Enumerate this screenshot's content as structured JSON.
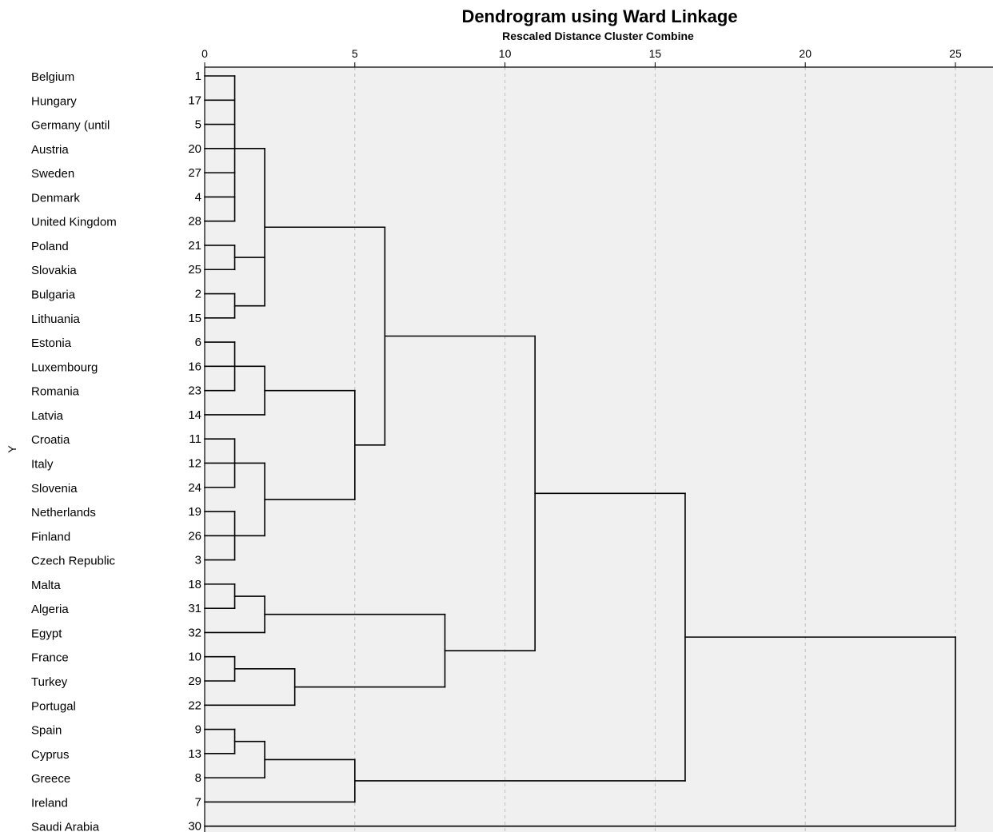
{
  "chart_data": {
    "type": "dendrogram",
    "title": "Dendrogram using Ward Linkage",
    "subtitle": "Rescaled Distance Cluster Combine",
    "ylabel": "Y",
    "x_ticks": [
      0,
      5,
      10,
      15,
      20,
      25
    ],
    "xlim": [
      0,
      25
    ],
    "grid": true,
    "colors": {
      "plot_bg": "#f0f0f0",
      "line": "#000000",
      "grid": "#bdbdbd"
    },
    "leaves": [
      {
        "name": "Belgium",
        "id": "1"
      },
      {
        "name": "Hungary",
        "id": "17"
      },
      {
        "name": "Germany (until",
        "id": "5"
      },
      {
        "name": "Austria",
        "id": "20"
      },
      {
        "name": "Sweden",
        "id": "27"
      },
      {
        "name": "Denmark",
        "id": "4"
      },
      {
        "name": "United Kingdom",
        "id": "28"
      },
      {
        "name": "Poland",
        "id": "21"
      },
      {
        "name": "Slovakia",
        "id": "25"
      },
      {
        "name": "Bulgaria",
        "id": "2"
      },
      {
        "name": "Lithuania",
        "id": "15"
      },
      {
        "name": "Estonia",
        "id": "6"
      },
      {
        "name": "Luxembourg",
        "id": "16"
      },
      {
        "name": "Romania",
        "id": "23"
      },
      {
        "name": "Latvia",
        "id": "14"
      },
      {
        "name": "Croatia",
        "id": "11"
      },
      {
        "name": "Italy",
        "id": "12"
      },
      {
        "name": "Slovenia",
        "id": "24"
      },
      {
        "name": "Netherlands",
        "id": "19"
      },
      {
        "name": "Finland",
        "id": "26"
      },
      {
        "name": "Czech Republic",
        "id": "3"
      },
      {
        "name": "Malta",
        "id": "18"
      },
      {
        "name": "Algeria",
        "id": "31"
      },
      {
        "name": "Egypt",
        "id": "32"
      },
      {
        "name": "France",
        "id": "10"
      },
      {
        "name": "Turkey",
        "id": "29"
      },
      {
        "name": "Portugal",
        "id": "22"
      },
      {
        "name": "Spain",
        "id": "9"
      },
      {
        "name": "Cyprus",
        "id": "13"
      },
      {
        "name": "Greece",
        "id": "8"
      },
      {
        "name": "Ireland",
        "id": "7"
      },
      {
        "name": "Saudi Arabia",
        "id": "30"
      }
    ],
    "merges": [
      {
        "id": "A",
        "children": [
          0,
          1,
          2,
          3,
          4,
          5,
          6
        ],
        "distance": 1
      },
      {
        "id": "B",
        "children": [
          7,
          8
        ],
        "distance": 1
      },
      {
        "id": "C",
        "children": [
          9,
          10
        ],
        "distance": 1
      },
      {
        "id": "D",
        "children": [
          "A",
          "B",
          "C"
        ],
        "distance": 2
      },
      {
        "id": "E",
        "children": [
          11,
          12,
          13
        ],
        "distance": 1
      },
      {
        "id": "F",
        "children": [
          "E",
          14
        ],
        "distance": 2
      },
      {
        "id": "G",
        "children": [
          15,
          16,
          17
        ],
        "distance": 1
      },
      {
        "id": "H",
        "children": [
          18,
          19,
          20
        ],
        "distance": 1
      },
      {
        "id": "I",
        "children": [
          "G",
          "H"
        ],
        "distance": 2
      },
      {
        "id": "J",
        "children": [
          "F",
          "I"
        ],
        "distance": 5
      },
      {
        "id": "K",
        "children": [
          "D",
          "J"
        ],
        "distance": 6
      },
      {
        "id": "L",
        "children": [
          21,
          22
        ],
        "distance": 1
      },
      {
        "id": "M",
        "children": [
          "L",
          23
        ],
        "distance": 2
      },
      {
        "id": "N",
        "children": [
          24,
          25
        ],
        "distance": 1
      },
      {
        "id": "O",
        "children": [
          "N",
          26
        ],
        "distance": 3
      },
      {
        "id": "P",
        "children": [
          "M",
          "O"
        ],
        "distance": 8
      },
      {
        "id": "Q",
        "children": [
          "K",
          "P"
        ],
        "distance": 11
      },
      {
        "id": "R",
        "children": [
          27,
          28
        ],
        "distance": 1
      },
      {
        "id": "S",
        "children": [
          "R",
          29
        ],
        "distance": 2
      },
      {
        "id": "T",
        "children": [
          "S",
          30
        ],
        "distance": 5
      },
      {
        "id": "U",
        "children": [
          "Q",
          "T"
        ],
        "distance": 16
      },
      {
        "id": "V",
        "children": [
          "U",
          31
        ],
        "distance": 25
      }
    ]
  }
}
